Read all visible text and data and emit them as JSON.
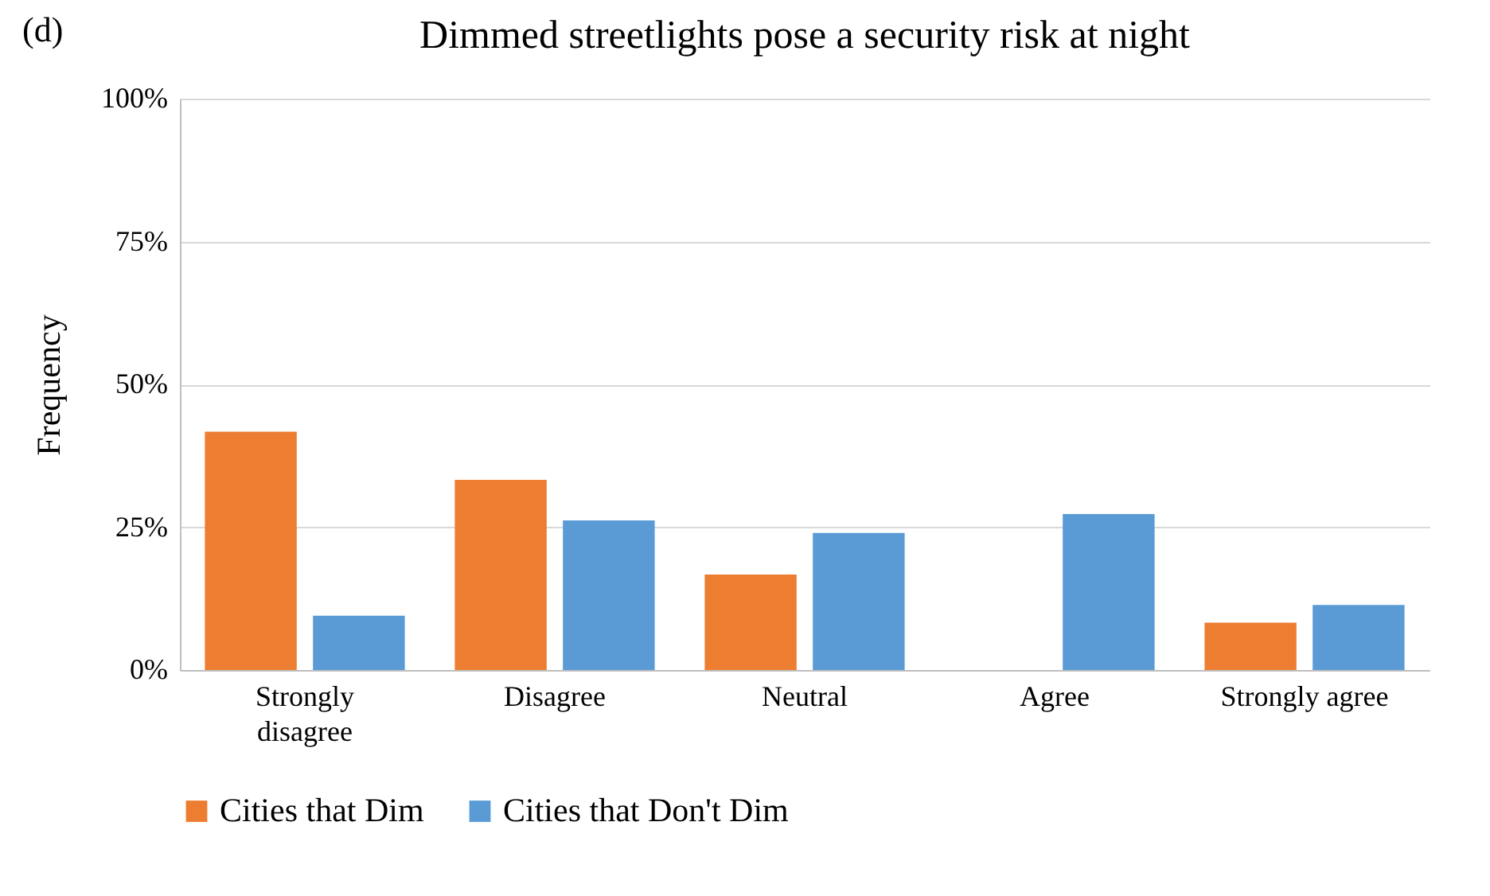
{
  "chart_data": {
    "type": "bar",
    "title": "Dimmed streetlights pose a security risk at night",
    "ylabel": "Frequency",
    "annotations": [
      "(d)"
    ],
    "categories": [
      "Strongly disagree",
      "Disagree",
      "Neutral",
      "Agree",
      "Strongly agree"
    ],
    "series": [
      {
        "name": "Cities that Dim",
        "color": "#ed7d31",
        "values": [
          41.7,
          33.3,
          16.7,
          0,
          8.3
        ]
      },
      {
        "name": "Cities that Don't Dim",
        "color": "#5b9bd5",
        "values": [
          9.5,
          26.2,
          24,
          27.3,
          11.4
        ]
      }
    ],
    "ylim": [
      0,
      100
    ],
    "yticks": [
      {
        "value": 0,
        "label": "0%"
      },
      {
        "value": 25,
        "label": "25%"
      },
      {
        "value": 50,
        "label": "50%"
      },
      {
        "value": 75,
        "label": "75%"
      },
      {
        "value": 100,
        "label": "100%"
      }
    ],
    "grid": "y",
    "legend": "bottom"
  }
}
